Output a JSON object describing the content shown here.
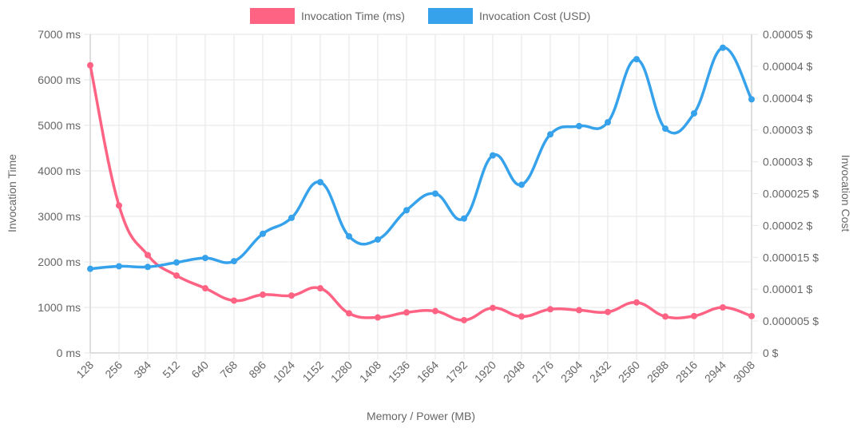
{
  "chart_data": {
    "type": "line",
    "xlabel": "Memory / Power (MB)",
    "categories": [
      "128",
      "256",
      "384",
      "512",
      "640",
      "768",
      "896",
      "1024",
      "1152",
      "1280",
      "1408",
      "1536",
      "1664",
      "1792",
      "1920",
      "2048",
      "2176",
      "2304",
      "2432",
      "2560",
      "2688",
      "2816",
      "2944",
      "3008"
    ],
    "y_left": {
      "label": "Invocation Time",
      "ylim": [
        0,
        7000
      ],
      "ticks": [
        0,
        1000,
        2000,
        3000,
        4000,
        5000,
        6000,
        7000
      ],
      "tick_labels": [
        "0 ms",
        "1000 ms",
        "2000 ms",
        "3000 ms",
        "4000 ms",
        "5000 ms",
        "6000 ms",
        "7000 ms"
      ]
    },
    "y_right": {
      "label": "Invocation Cost",
      "ylim": [
        0,
        5e-05
      ],
      "ticks": [
        0,
        5e-06,
        1e-05,
        1.5e-05,
        2e-05,
        2.5e-05,
        3e-05,
        3.5e-05,
        4e-05,
        4.5e-05,
        5e-05
      ],
      "tick_labels": [
        "0 $",
        "0.000005 $",
        "0.00001 $",
        "0.000015 $",
        "0.00002 $",
        "0.000025 $",
        "0.00003 $",
        "0.00003 $",
        "0.00004 $",
        "0.00004 $",
        "0.00005 $"
      ]
    },
    "series": [
      {
        "name": "Invocation Time (ms)",
        "axis": "left",
        "color": "#ff6384",
        "values": [
          6320,
          3240,
          2150,
          1700,
          1420,
          1150,
          1280,
          1260,
          1420,
          870,
          780,
          890,
          920,
          720,
          990,
          800,
          960,
          940,
          900,
          1110,
          800,
          810,
          1000,
          810
        ]
      },
      {
        "name": "Invocation Cost (USD)",
        "axis": "right",
        "color": "#36a2eb",
        "values": [
          1.32e-05,
          1.36e-05,
          1.35e-05,
          1.42e-05,
          1.49e-05,
          1.44e-05,
          1.87e-05,
          2.12e-05,
          2.68e-05,
          1.83e-05,
          1.78e-05,
          2.24e-05,
          2.5e-05,
          2.11e-05,
          3.1e-05,
          2.64e-05,
          3.43e-05,
          3.56e-05,
          3.62e-05,
          4.61e-05,
          3.52e-05,
          3.76e-05,
          4.79e-05,
          3.98e-05
        ]
      }
    ],
    "grid": true,
    "legend_position": "top"
  }
}
